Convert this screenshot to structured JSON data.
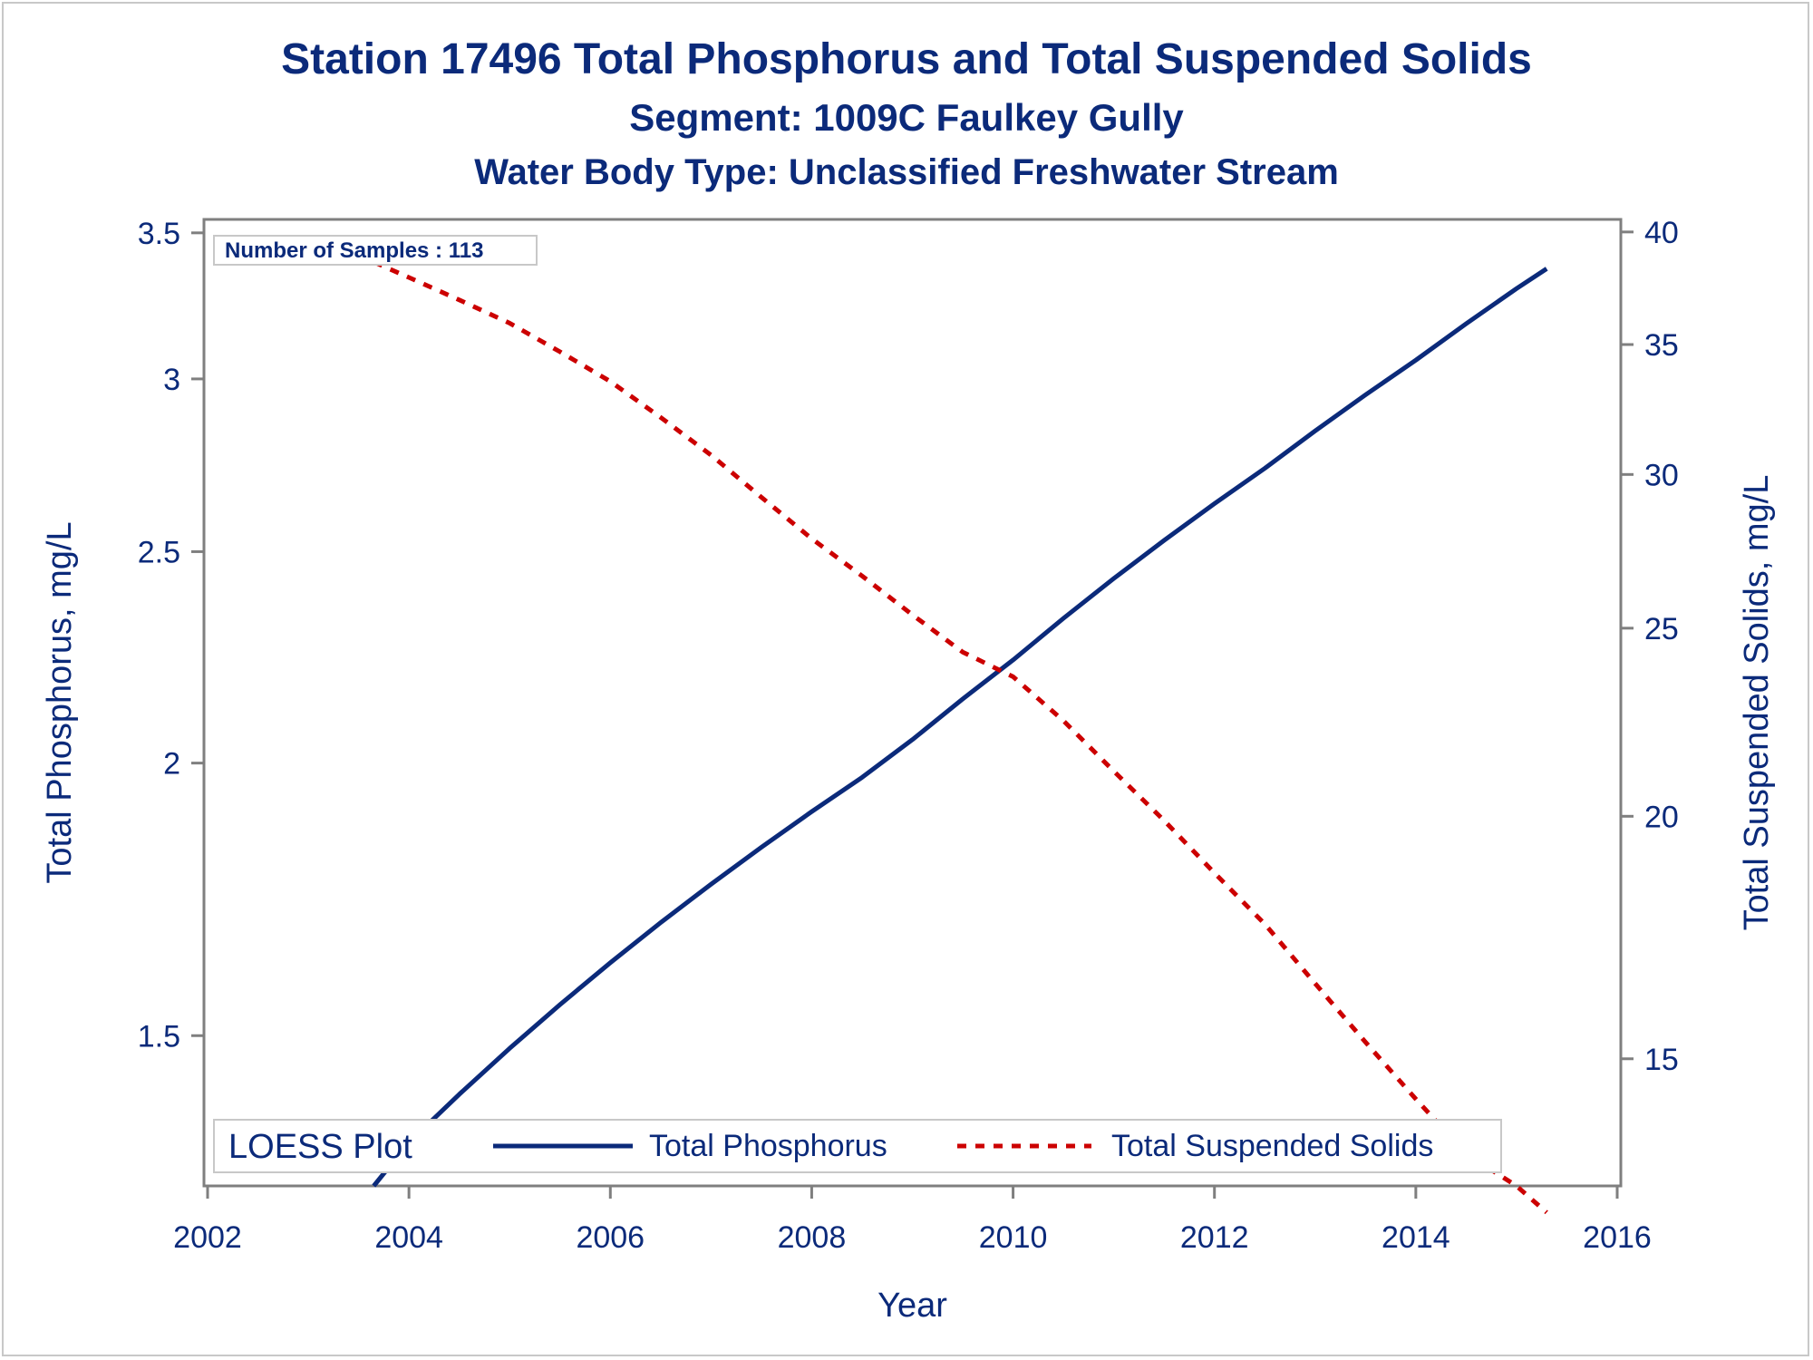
{
  "chart_data": {
    "type": "line",
    "title": "Station 17496  Total Phosphorus and Total Suspended Solids",
    "subtitle": "Segment: 1009C  Faulkey Gully",
    "subtitle2": "Water Body Type: Unclassified Freshwater Stream",
    "xlabel": "Year",
    "ylabel": "Total Phosphorus, mg/L",
    "y2label": "Total Suspended Solids, mg/L",
    "xlim": [
      2002,
      2016
    ],
    "ylim": [
      1.28,
      3.55
    ],
    "y2lim": [
      12.9,
      40.6
    ],
    "yscale": "log",
    "y2scale": "log",
    "xticks": [
      2002,
      2004,
      2006,
      2008,
      2010,
      2012,
      2014,
      2016
    ],
    "xtick_labels": [
      "2002",
      "2004",
      "2006",
      "2008",
      "2010",
      "2012",
      "2014",
      "2016"
    ],
    "yticks": [
      1.5,
      2,
      2.5,
      3,
      3.5
    ],
    "ytick_labels": [
      "1.5",
      "2",
      "2.5",
      "3",
      "3.5"
    ],
    "y2ticks": [
      15,
      20,
      25,
      30,
      35,
      40
    ],
    "y2tick_labels": [
      "15",
      "20",
      "25",
      "30",
      "35",
      "40"
    ],
    "grid": false,
    "inset_label": "Number of Samples : 113",
    "legend": {
      "title": "LOESS Plot",
      "position": "bottom-inside",
      "entries": [
        "Total Phosphorus",
        "Total Suspended Solids"
      ]
    },
    "series": [
      {
        "name": "Total Phosphorus",
        "axis": "left",
        "color": "#0b2a7a",
        "dash": "solid",
        "x": [
          2003.65,
          2004.0,
          2004.5,
          2005.0,
          2005.5,
          2006.0,
          2006.5,
          2007.0,
          2007.5,
          2008.0,
          2008.5,
          2009.0,
          2009.5,
          2010.0,
          2010.5,
          2011.0,
          2011.5,
          2012.0,
          2012.5,
          2013.0,
          2013.5,
          2014.0,
          2014.5,
          2015.0,
          2015.3
        ],
        "values": [
          1.28,
          1.34,
          1.41,
          1.48,
          1.55,
          1.62,
          1.69,
          1.76,
          1.83,
          1.9,
          1.97,
          2.05,
          2.14,
          2.23,
          2.33,
          2.43,
          2.53,
          2.63,
          2.73,
          2.84,
          2.95,
          3.06,
          3.18,
          3.3,
          3.37
        ]
      },
      {
        "name": "Total Suspended Solids",
        "axis": "right",
        "color": "#cc0000",
        "dash": "dashed",
        "x": [
          2003.65,
          2004.0,
          2004.5,
          2005.0,
          2005.5,
          2006.0,
          2006.5,
          2007.0,
          2007.5,
          2008.0,
          2008.5,
          2009.0,
          2009.5,
          2010.0,
          2010.5,
          2011.0,
          2011.5,
          2012.0,
          2012.5,
          2013.0,
          2013.5,
          2014.0,
          2014.5,
          2015.0,
          2015.3
        ],
        "values": [
          38.6,
          37.9,
          36.9,
          35.9,
          34.7,
          33.5,
          32.1,
          30.7,
          29.2,
          27.8,
          26.6,
          25.4,
          24.3,
          23.6,
          22.4,
          21.1,
          19.9,
          18.7,
          17.6,
          16.4,
          15.3,
          14.3,
          13.4,
          12.9,
          12.5
        ]
      }
    ]
  }
}
